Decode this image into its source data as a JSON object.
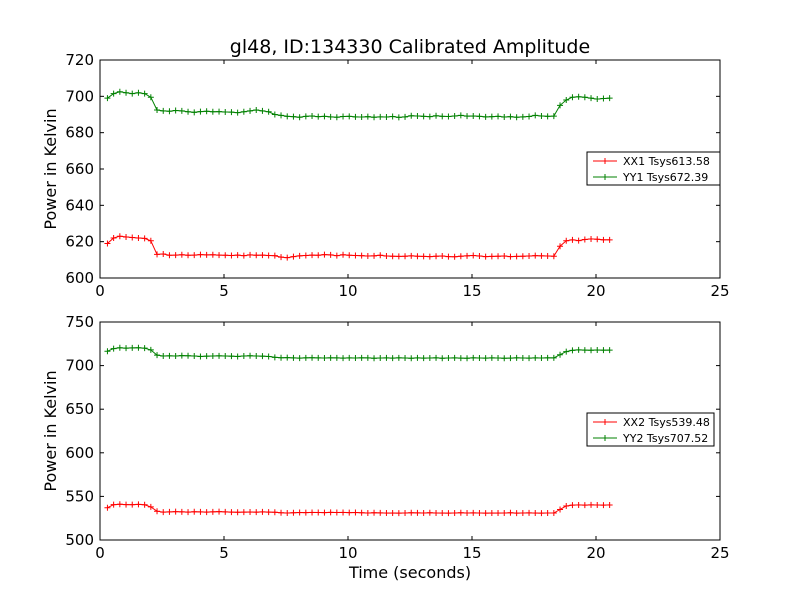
{
  "figure": {
    "title": "gl48, ID:134330 Calibrated Amplitude",
    "xlabel": "Time (seconds)"
  },
  "chart_data": [
    {
      "type": "line",
      "title": "gl48, ID:134330 Calibrated Amplitude",
      "xlabel": "",
      "ylabel": "Power in Kelvin",
      "xlim": [
        0,
        25
      ],
      "ylim": [
        600,
        720
      ],
      "xticks": [
        "0",
        "5",
        "10",
        "15",
        "20",
        "25"
      ],
      "yticks": [
        "600",
        "620",
        "640",
        "660",
        "680",
        "700",
        "720"
      ],
      "grid": false,
      "legend_position": "right",
      "marker": "+",
      "x": [
        0.3,
        0.55,
        0.8,
        1.05,
        1.3,
        1.55,
        1.8,
        2.05,
        2.3,
        2.55,
        2.8,
        3.05,
        3.3,
        3.55,
        3.8,
        4.05,
        4.3,
        4.55,
        4.8,
        5.05,
        5.3,
        5.55,
        5.8,
        6.05,
        6.3,
        6.55,
        6.8,
        7.05,
        7.3,
        7.55,
        7.8,
        8.05,
        8.3,
        8.55,
        8.8,
        9.05,
        9.3,
        9.55,
        9.8,
        10.05,
        10.3,
        10.55,
        10.8,
        11.05,
        11.3,
        11.55,
        11.8,
        12.05,
        12.3,
        12.55,
        12.8,
        13.05,
        13.3,
        13.55,
        13.8,
        14.05,
        14.3,
        14.55,
        14.8,
        15.05,
        15.3,
        15.55,
        15.8,
        16.05,
        16.3,
        16.55,
        16.8,
        17.05,
        17.3,
        17.55,
        17.8,
        18.05,
        18.3,
        18.55,
        18.8,
        19.05,
        19.3,
        19.55,
        19.8,
        20.05,
        20.3,
        20.55
      ],
      "series": [
        {
          "name": "XX1 Tsys613.58",
          "color": "#ff0000",
          "values": [
            619.0,
            622.0,
            623.0,
            622.6,
            622.3,
            622.0,
            621.8,
            620.5,
            613.0,
            613.2,
            612.5,
            612.6,
            612.8,
            612.5,
            612.6,
            612.9,
            612.7,
            612.8,
            612.6,
            612.5,
            612.4,
            612.6,
            612.3,
            612.7,
            612.5,
            612.6,
            612.4,
            612.3,
            611.5,
            611.2,
            611.8,
            612.2,
            612.4,
            612.6,
            612.5,
            612.9,
            612.7,
            612.3,
            612.8,
            612.5,
            612.4,
            612.3,
            612.1,
            612.2,
            612.5,
            612.1,
            612.0,
            611.9,
            612.0,
            612.2,
            612.0,
            611.9,
            611.8,
            612.0,
            612.1,
            611.8,
            611.7,
            612.0,
            612.2,
            612.4,
            612.1,
            611.8,
            611.9,
            612.0,
            612.1,
            611.8,
            611.9,
            612.0,
            612.1,
            612.3,
            612.2,
            612.1,
            612.0,
            617.5,
            620.5,
            621.0,
            620.6,
            621.2,
            621.5,
            621.3,
            621.0,
            621.0
          ]
        },
        {
          "name": "YY1 Tsys672.39",
          "color": "#008000",
          "values": [
            699.0,
            701.5,
            702.5,
            702.0,
            701.5,
            702.0,
            701.5,
            699.5,
            692.5,
            692.0,
            691.8,
            692.2,
            692.0,
            691.5,
            691.2,
            691.6,
            691.8,
            691.5,
            691.6,
            691.4,
            691.3,
            691.0,
            691.5,
            692.0,
            692.5,
            692.0,
            691.5,
            690.0,
            689.5,
            689.0,
            688.8,
            688.5,
            689.0,
            689.2,
            688.8,
            689.0,
            688.7,
            688.5,
            688.9,
            689.0,
            688.7,
            688.6,
            688.8,
            688.5,
            688.7,
            688.6,
            688.9,
            688.4,
            688.7,
            689.3,
            689.2,
            689.0,
            688.8,
            689.3,
            689.0,
            688.9,
            689.2,
            689.5,
            689.1,
            689.2,
            689.0,
            688.7,
            688.8,
            689.0,
            688.6,
            688.8,
            688.5,
            688.7,
            688.9,
            689.5,
            689.2,
            689.0,
            689.1,
            695.0,
            698.0,
            699.5,
            699.8,
            699.5,
            699.0,
            698.5,
            698.8,
            699.0
          ]
        }
      ]
    },
    {
      "type": "line",
      "title": "",
      "xlabel": "Time (seconds)",
      "ylabel": "Power in Kelvin",
      "xlim": [
        0,
        25
      ],
      "ylim": [
        500,
        750
      ],
      "xticks": [
        "0",
        "5",
        "10",
        "15",
        "20",
        "25"
      ],
      "yticks": [
        "500",
        "550",
        "600",
        "650",
        "700",
        "750"
      ],
      "grid": false,
      "legend_position": "right",
      "marker": "+",
      "x": [
        0.3,
        0.55,
        0.8,
        1.05,
        1.3,
        1.55,
        1.8,
        2.05,
        2.3,
        2.55,
        2.8,
        3.05,
        3.3,
        3.55,
        3.8,
        4.05,
        4.3,
        4.55,
        4.8,
        5.05,
        5.3,
        5.55,
        5.8,
        6.05,
        6.3,
        6.55,
        6.8,
        7.05,
        7.3,
        7.55,
        7.8,
        8.05,
        8.3,
        8.55,
        8.8,
        9.05,
        9.3,
        9.55,
        9.8,
        10.05,
        10.3,
        10.55,
        10.8,
        11.05,
        11.3,
        11.55,
        11.8,
        12.05,
        12.3,
        12.55,
        12.8,
        13.05,
        13.3,
        13.55,
        13.8,
        14.05,
        14.3,
        14.55,
        14.8,
        15.05,
        15.3,
        15.55,
        15.8,
        16.05,
        16.3,
        16.55,
        16.8,
        17.05,
        17.3,
        17.55,
        17.8,
        18.05,
        18.3,
        18.55,
        18.8,
        19.05,
        19.3,
        19.55,
        19.8,
        20.05,
        20.3,
        20.55
      ],
      "series": [
        {
          "name": "XX2 Tsys539.48",
          "color": "#ff0000",
          "values": [
            537.0,
            540.5,
            541.0,
            540.6,
            540.5,
            540.8,
            540.4,
            538.0,
            533.0,
            532.0,
            532.2,
            532.5,
            532.3,
            532.0,
            532.4,
            532.2,
            532.0,
            532.3,
            532.6,
            532.2,
            532.0,
            531.8,
            532.0,
            532.1,
            531.9,
            532.2,
            532.0,
            531.8,
            531.2,
            531.0,
            531.3,
            531.5,
            531.4,
            531.6,
            531.5,
            531.4,
            531.7,
            531.5,
            531.6,
            531.4,
            531.5,
            531.2,
            531.0,
            531.2,
            531.1,
            530.9,
            531.0,
            530.8,
            531.0,
            531.2,
            531.1,
            531.0,
            531.2,
            531.0,
            530.9,
            530.8,
            531.0,
            531.2,
            531.0,
            531.1,
            531.0,
            530.8,
            531.0,
            530.9,
            531.0,
            531.2,
            530.8,
            531.0,
            531.1,
            530.9,
            530.8,
            531.0,
            531.0,
            535.0,
            539.0,
            540.0,
            540.2,
            540.0,
            540.3,
            540.1,
            540.0,
            540.2
          ]
        },
        {
          "name": "YY2 Tsys707.52",
          "color": "#008000",
          "values": [
            716.5,
            719.5,
            720.5,
            720.0,
            720.3,
            720.5,
            720.0,
            718.0,
            712.0,
            711.0,
            711.2,
            711.0,
            711.5,
            711.3,
            711.0,
            710.5,
            710.8,
            711.0,
            711.2,
            711.0,
            710.8,
            710.5,
            711.0,
            711.3,
            711.0,
            710.8,
            710.5,
            709.5,
            709.0,
            709.2,
            708.8,
            708.6,
            708.9,
            709.0,
            708.8,
            708.7,
            708.9,
            708.8,
            708.6,
            708.8,
            708.7,
            708.9,
            708.8,
            708.5,
            708.7,
            708.8,
            708.6,
            708.9,
            708.7,
            708.5,
            708.8,
            708.6,
            708.7,
            708.9,
            708.5,
            708.7,
            708.8,
            708.6,
            708.5,
            708.9,
            708.7,
            708.6,
            708.8,
            708.7,
            708.5,
            708.6,
            708.9,
            708.7,
            708.6,
            708.8,
            708.7,
            708.9,
            708.8,
            712.5,
            716.0,
            717.5,
            718.0,
            717.8,
            717.6,
            717.9,
            717.7,
            717.8
          ]
        }
      ]
    }
  ]
}
